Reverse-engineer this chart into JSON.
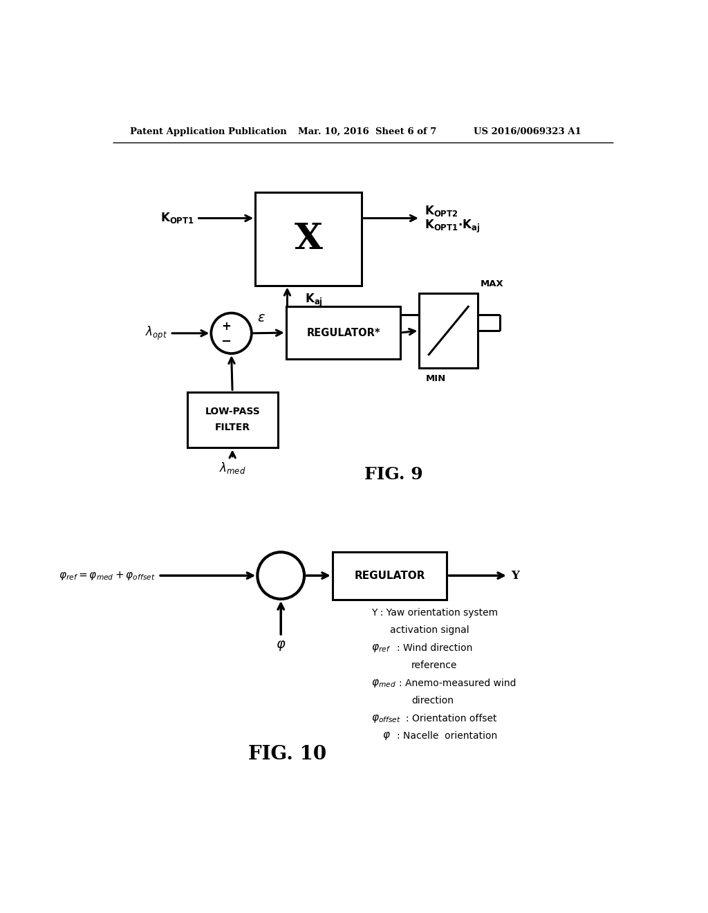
{
  "bg_color": "#ffffff",
  "header_left": "Patent Application Publication",
  "header_mid": "Mar. 10, 2016  Sheet 6 of 7",
  "header_right": "US 2016/0069323 A1",
  "fig9_label": "FIG. 9",
  "fig10_label": "FIG. 10"
}
